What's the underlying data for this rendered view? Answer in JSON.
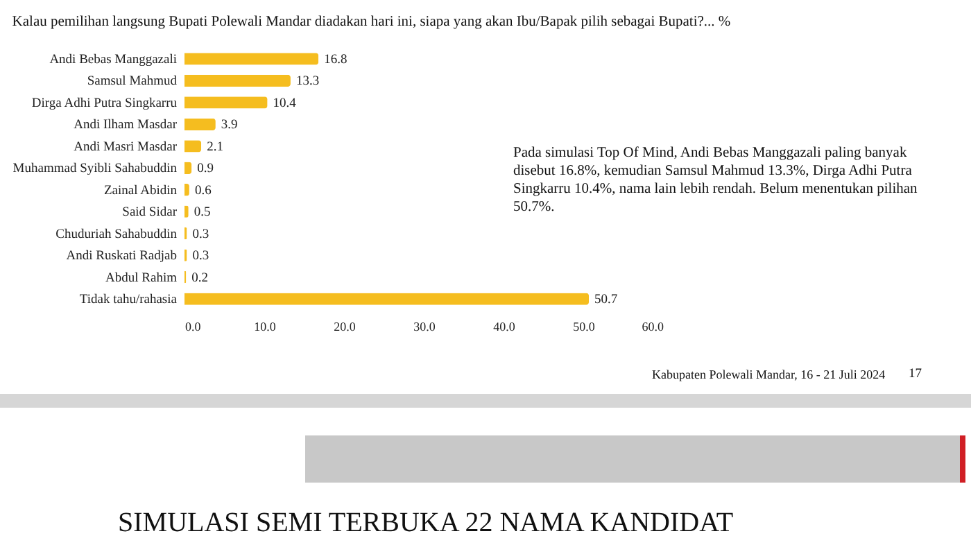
{
  "chart_data": {
    "type": "bar",
    "orientation": "horizontal",
    "title": "Kalau pemilihan langsung Bupati Polewali Mandar diadakan hari ini, siapa yang akan Ibu/Bapak pilih sebagai Bupati?... %",
    "categories": [
      "Andi Bebas Manggazali",
      "Samsul Mahmud",
      "Dirga Adhi Putra Singkarru",
      "Andi Ilham Masdar",
      "Andi Masri Masdar",
      "Muhammad Syibli Sahabuddin",
      "Zainal Abidin",
      "Said Sidar",
      "Chuduriah Sahabuddin",
      "Andi Ruskati Radjab",
      "Abdul Rahim",
      "Tidak tahu/rahasia"
    ],
    "values": [
      16.8,
      13.3,
      10.4,
      3.9,
      2.1,
      0.9,
      0.6,
      0.5,
      0.3,
      0.3,
      0.2,
      50.7
    ],
    "color": "#f5bd1f",
    "value_labels": [
      "16.8",
      "13.3",
      "10.4",
      "3.9",
      "2.1",
      "0.9",
      "0.6",
      "0.5",
      "0.3",
      "0.3",
      "0.2",
      "50.7"
    ],
    "xlim": [
      0,
      60
    ],
    "xticks": [
      {
        "value": 0,
        "label": "0.0"
      },
      {
        "value": 10,
        "label": "10.0"
      },
      {
        "value": 20,
        "label": "20.0"
      },
      {
        "value": 30,
        "label": "30.0"
      },
      {
        "value": 40,
        "label": "40.0"
      },
      {
        "value": 50,
        "label": "50.0"
      },
      {
        "value": 60,
        "label": "60.0"
      }
    ],
    "grid": false,
    "annotations": [
      "Pada simulasi Top Of Mind, Andi Bebas Manggazali paling banyak disebut 16.8%, kemudian Samsul Mahmud 13.3%, Dirga Adhi Putra Singkarru 10.4%, nama lain lebih rendah. Belum menentukan pilihan 50.7%.",
      "Kabupaten Polewali Mandar, 16 - 21 Juli 2024",
      "17",
      "SIMULASI SEMI TERBUKA 22 NAMA KANDIDAT"
    ]
  }
}
